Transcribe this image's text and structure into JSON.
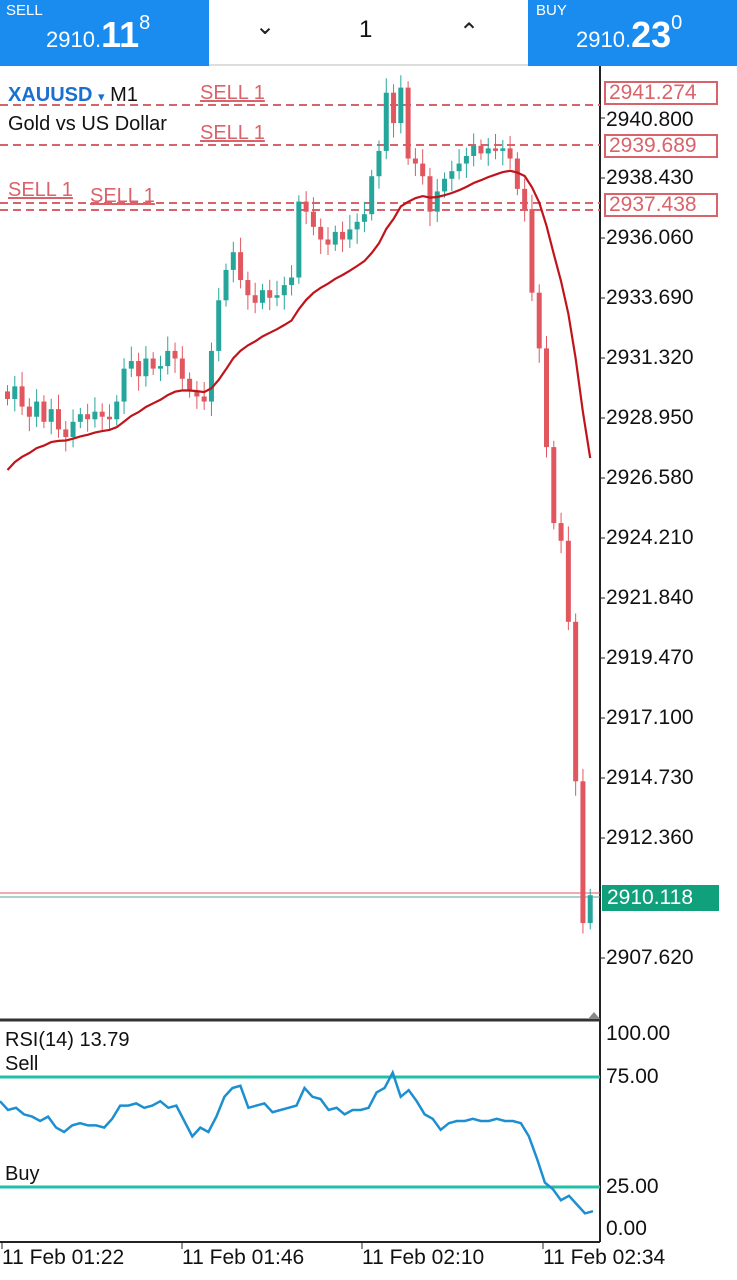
{
  "topbar": {
    "sell_label": "SELL",
    "sell_price_small": "2910.",
    "sell_price_big": "11",
    "sell_price_sup": "8",
    "buy_label": "BUY",
    "buy_price_small": "2910.",
    "buy_price_big": "23",
    "buy_price_sup": "0",
    "lot": "1",
    "down_icon": "chevron-down",
    "up_icon": "chevron-up"
  },
  "chart": {
    "symbol": "XAUUSD",
    "timeframe": "M1",
    "description": "Gold vs US Dollar",
    "symbol_arrow": "▾",
    "order_labels": [
      "SELL 1",
      "SELL 1",
      "SELL 1",
      "SELL 1"
    ],
    "order_tags": [
      "2941.274",
      "2939.689",
      "2937.438"
    ],
    "price_axis": [
      "2940.800",
      "2938.430",
      "2936.060",
      "2933.690",
      "2931.320",
      "2928.950",
      "2926.580",
      "2924.210",
      "2921.840",
      "2919.470",
      "2917.100",
      "2914.730",
      "2912.360",
      "2907.620"
    ],
    "current_price": "2910.118",
    "colors": {
      "up": "#26a69a",
      "down": "#e0575f",
      "ma": "#c0141c",
      "rsi": "#1d8fd0",
      "level": "#20c0a8",
      "accent": "#1a8cf0"
    }
  },
  "chart_data": {
    "type": "candlestick",
    "ylim": [
      2906.0,
      2943.6
    ],
    "closes": [
      2929.7,
      2930.2,
      2929.4,
      2929.0,
      2929.6,
      2928.8,
      2929.3,
      2928.5,
      2928.2,
      2928.8,
      2929.1,
      2928.9,
      2929.2,
      2929.0,
      2928.9,
      2929.6,
      2930.9,
      2931.2,
      2930.6,
      2931.3,
      2930.9,
      2931.0,
      2931.6,
      2931.3,
      2930.5,
      2930.0,
      2929.8,
      2929.6,
      2931.6,
      2933.6,
      2934.8,
      2935.5,
      2934.4,
      2933.8,
      2933.5,
      2934.0,
      2933.7,
      2933.8,
      2934.2,
      2934.5,
      2937.5,
      2937.1,
      2936.5,
      2936.0,
      2935.8,
      2936.3,
      2936.0,
      2936.4,
      2936.7,
      2937.0,
      2938.5,
      2939.5,
      2941.8,
      2940.6,
      2942.0,
      2939.2,
      2939.0,
      2938.5,
      2937.1,
      2937.9,
      2938.4,
      2938.7,
      2939.0,
      2939.3,
      2939.7,
      2939.4,
      2939.6,
      2939.5,
      2939.6,
      2939.2,
      2938.0,
      2937.2,
      2933.9,
      2931.7,
      2927.8,
      2924.8,
      2924.1,
      2920.9,
      2914.6,
      2909.0,
      2910.1
    ],
    "ma_seed": 2926.6,
    "ma_period": 20,
    "rsi": {
      "label": "RSI(14) 13.79",
      "levels": [
        75,
        25
      ],
      "level_labels": [
        "Sell",
        "Buy"
      ],
      "axis": [
        "100.00",
        "75.00",
        "25.00",
        "0.00"
      ],
      "values": [
        64,
        60,
        61,
        58,
        57,
        55,
        57,
        52,
        50,
        53,
        54,
        53,
        53,
        52,
        56,
        62,
        62,
        63,
        61,
        62,
        64,
        61,
        62,
        55,
        48,
        52,
        50,
        57,
        66,
        70,
        71,
        61,
        62,
        63,
        59,
        60,
        61,
        62,
        70,
        66,
        65,
        60,
        61,
        58,
        60,
        60,
        61,
        68,
        70,
        77,
        66,
        69,
        64,
        58,
        56,
        51,
        54,
        55,
        55,
        56,
        55,
        55,
        56,
        55,
        55,
        54,
        48,
        38,
        27,
        24,
        19,
        21,
        17,
        13,
        14
      ]
    },
    "x_labels": [
      "11 Feb 01:22",
      "11 Feb 01:46",
      "11 Feb 02:10",
      "11 Feb 02:34"
    ]
  }
}
